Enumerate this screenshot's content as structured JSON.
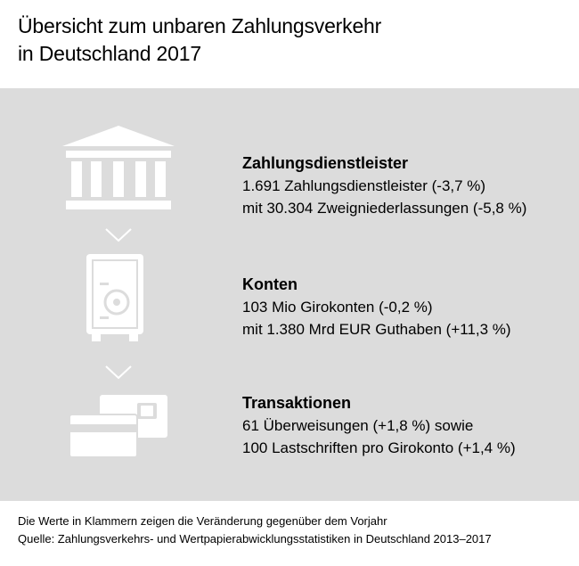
{
  "title": {
    "line1": "Übersicht zum unbaren Zahlungsverkehr",
    "line2": "in Deutschland 2017"
  },
  "sections": [
    {
      "icon": "bank-building-icon",
      "heading": "Zahlungsdienstleister",
      "lines": [
        "1.691 Zahlungsdienstleister (-3,7 %)",
        "mit 30.304 Zweigniederlassungen (-5,8 %)"
      ]
    },
    {
      "icon": "safe-icon",
      "heading": "Konten",
      "lines": [
        "103 Mio Girokonten (-0,2 %)",
        "mit 1.380 Mrd EUR Guthaben (+11,3 %)"
      ]
    },
    {
      "icon": "payment-cards-icon",
      "heading": "Transaktionen",
      "lines": [
        "61 Überweisungen (+1,8 %) sowie",
        "100 Lastschriften pro Girokonto (+1,4 %)"
      ]
    }
  ],
  "footer": {
    "note": "Die Werte in Klammern zeigen die Veränderung gegenüber dem Vorjahr",
    "source": "Quelle: Zahlungsverkehrs- und Wertpapierabwicklungsstatistiken in Deutschland 2013–2017"
  },
  "colors": {
    "panel": "#dcdcdc",
    "icon": "#ffffff",
    "text": "#000000"
  }
}
